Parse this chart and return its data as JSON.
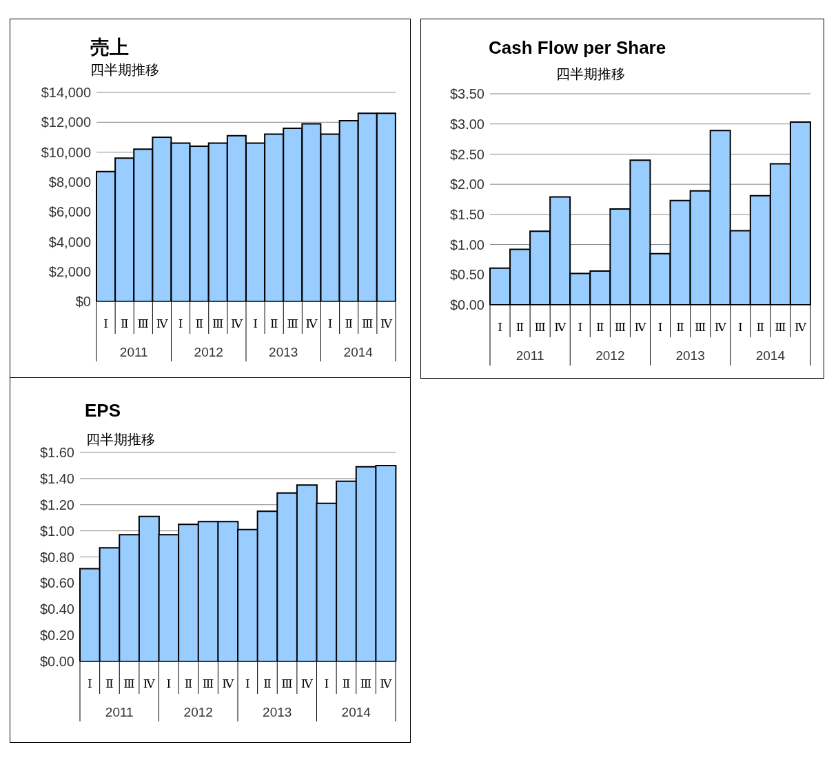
{
  "chart_data": [
    {
      "type": "bar",
      "title": "売上",
      "subtitle": "四半期推移",
      "categories": [
        "Ⅰ",
        "Ⅱ",
        "Ⅲ",
        "Ⅳ",
        "Ⅰ",
        "Ⅱ",
        "Ⅲ",
        "Ⅳ",
        "Ⅰ",
        "Ⅱ",
        "Ⅲ",
        "Ⅳ",
        "Ⅰ",
        "Ⅱ",
        "Ⅲ",
        "Ⅳ"
      ],
      "annotations": [
        "2011",
        "2012",
        "2013",
        "2014"
      ],
      "values": [
        8700,
        9600,
        10200,
        11000,
        10600,
        10400,
        10600,
        11100,
        10600,
        11200,
        11600,
        11900,
        11200,
        12100,
        12600,
        12600
      ],
      "color": "#99ccff",
      "ylim": [
        0,
        14000
      ],
      "yticks": [
        {
          "value": 0,
          "label": "$0"
        },
        {
          "value": 2000,
          "label": "$2,000"
        },
        {
          "value": 4000,
          "label": "$4,000"
        },
        {
          "value": 6000,
          "label": "$6,000"
        },
        {
          "value": 8000,
          "label": "$8,000"
        },
        {
          "value": 10000,
          "label": "$10,000"
        },
        {
          "value": 12000,
          "label": "$12,000"
        },
        {
          "value": 14000,
          "label": "$14,000"
        }
      ],
      "grid": "y"
    },
    {
      "type": "bar",
      "title": "Cash Flow per Share",
      "subtitle": "四半期推移",
      "categories": [
        "Ⅰ",
        "Ⅱ",
        "Ⅲ",
        "Ⅳ",
        "Ⅰ",
        "Ⅱ",
        "Ⅲ",
        "Ⅳ",
        "Ⅰ",
        "Ⅱ",
        "Ⅲ",
        "Ⅳ",
        "Ⅰ",
        "Ⅱ",
        "Ⅲ",
        "Ⅳ"
      ],
      "annotations": [
        "2011",
        "2012",
        "2013",
        "2014"
      ],
      "values": [
        0.61,
        0.92,
        1.22,
        1.79,
        0.52,
        0.56,
        1.59,
        2.4,
        0.85,
        1.73,
        1.89,
        2.89,
        1.23,
        1.81,
        2.34,
        3.03
      ],
      "color": "#99ccff",
      "ylim": [
        0,
        3.5
      ],
      "yticks": [
        {
          "value": 0,
          "label": "$0.00"
        },
        {
          "value": 0.5,
          "label": "$0.50"
        },
        {
          "value": 1,
          "label": "$1.00"
        },
        {
          "value": 1.5,
          "label": "$1.50"
        },
        {
          "value": 2,
          "label": "$2.00"
        },
        {
          "value": 2.5,
          "label": "$2.50"
        },
        {
          "value": 3,
          "label": "$3.00"
        },
        {
          "value": 3.5,
          "label": "$3.50"
        }
      ],
      "grid": "y"
    },
    {
      "type": "bar",
      "title": "EPS",
      "subtitle": "四半期推移",
      "categories": [
        "Ⅰ",
        "Ⅱ",
        "Ⅲ",
        "Ⅳ",
        "Ⅰ",
        "Ⅱ",
        "Ⅲ",
        "Ⅳ",
        "Ⅰ",
        "Ⅱ",
        "Ⅲ",
        "Ⅳ",
        "Ⅰ",
        "Ⅱ",
        "Ⅲ",
        "Ⅳ"
      ],
      "annotations": [
        "2011",
        "2012",
        "2013",
        "2014"
      ],
      "values": [
        0.71,
        0.87,
        0.97,
        1.11,
        0.97,
        1.05,
        1.07,
        1.07,
        1.01,
        1.15,
        1.29,
        1.35,
        1.21,
        1.38,
        1.49,
        1.5
      ],
      "color": "#99ccff",
      "ylim": [
        0,
        1.6
      ],
      "yticks": [
        {
          "value": 0,
          "label": "$0.00"
        },
        {
          "value": 0.2,
          "label": "$0.20"
        },
        {
          "value": 0.4,
          "label": "$0.40"
        },
        {
          "value": 0.6,
          "label": "$0.60"
        },
        {
          "value": 0.8,
          "label": "$0.80"
        },
        {
          "value": 1,
          "label": "$1.00"
        },
        {
          "value": 1.2,
          "label": "$1.20"
        },
        {
          "value": 1.4,
          "label": "$1.40"
        },
        {
          "value": 1.6,
          "label": "$1.60"
        }
      ],
      "grid": "y"
    }
  ]
}
